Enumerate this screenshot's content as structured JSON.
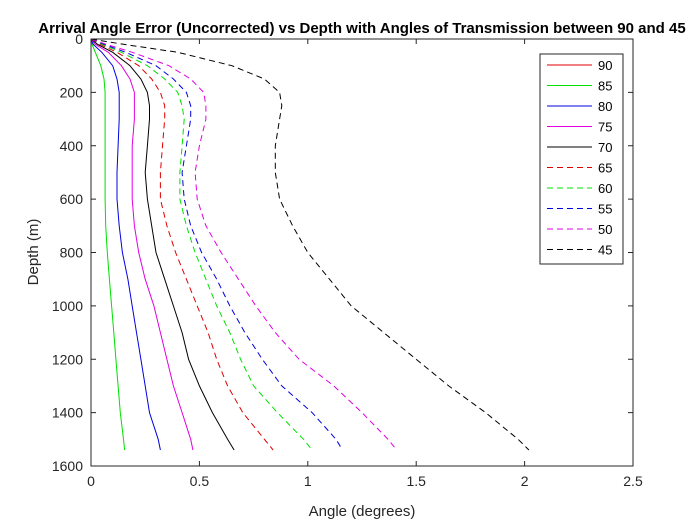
{
  "chart_data": {
    "type": "line",
    "title": "Arrival Angle Error (Uncorrected) vs Depth with Angles of Transmission between 90 and 45",
    "xlabel": "Angle (degrees)",
    "ylabel": "Depth (m)",
    "xlim": [
      0,
      2.5
    ],
    "ylim": [
      0,
      1600
    ],
    "y_reversed": true,
    "x_ticks": [
      "0",
      "0.5",
      "1",
      "1.5",
      "2",
      "2.5"
    ],
    "y_ticks": [
      "0",
      "200",
      "400",
      "600",
      "800",
      "1000",
      "1200",
      "1400",
      "1600"
    ],
    "grid": false,
    "legend_position": "top-right",
    "depths": [
      0,
      20,
      50,
      100,
      150,
      200,
      250,
      300,
      400,
      500,
      600,
      700,
      800,
      900,
      1000,
      1100,
      1200,
      1300,
      1400,
      1500,
      1540
    ],
    "series": [
      {
        "name": "90",
        "color": "#e00000",
        "dash": "solid",
        "values": [
          0,
          0,
          0,
          0,
          0,
          0,
          0,
          0,
          0,
          0,
          0,
          0,
          0,
          0,
          0,
          0,
          0,
          0,
          0,
          0,
          0
        ]
      },
      {
        "name": "85",
        "color": "#00e000",
        "dash": "solid",
        "values": [
          0,
          0.005,
          0.02,
          0.045,
          0.06,
          0.065,
          0.065,
          0.065,
          0.065,
          0.065,
          0.065,
          0.068,
          0.075,
          0.085,
          0.095,
          0.105,
          0.115,
          0.125,
          0.135,
          0.15,
          0.155
        ]
      },
      {
        "name": "80",
        "color": "#0000e0",
        "dash": "solid",
        "values": [
          0,
          0.01,
          0.05,
          0.1,
          0.12,
          0.13,
          0.13,
          0.13,
          0.125,
          0.12,
          0.12,
          0.13,
          0.145,
          0.17,
          0.19,
          0.21,
          0.23,
          0.25,
          0.27,
          0.31,
          0.32
        ]
      },
      {
        "name": "75",
        "color": "#e000e0",
        "dash": "solid",
        "values": [
          0,
          0.02,
          0.08,
          0.14,
          0.18,
          0.2,
          0.2,
          0.2,
          0.19,
          0.19,
          0.19,
          0.2,
          0.22,
          0.25,
          0.29,
          0.32,
          0.35,
          0.38,
          0.42,
          0.46,
          0.47
        ]
      },
      {
        "name": "70",
        "color": "#000000",
        "dash": "solid",
        "values": [
          0,
          0.03,
          0.1,
          0.18,
          0.23,
          0.26,
          0.27,
          0.27,
          0.26,
          0.25,
          0.26,
          0.28,
          0.3,
          0.34,
          0.38,
          0.42,
          0.45,
          0.5,
          0.56,
          0.63,
          0.66
        ]
      },
      {
        "name": "65",
        "color": "#e00000",
        "dash": "dashed",
        "values": [
          0,
          0.04,
          0.12,
          0.22,
          0.28,
          0.32,
          0.34,
          0.34,
          0.33,
          0.32,
          0.32,
          0.35,
          0.39,
          0.44,
          0.49,
          0.54,
          0.58,
          0.63,
          0.7,
          0.8,
          0.84
        ]
      },
      {
        "name": "60",
        "color": "#00e000",
        "dash": "dashed",
        "values": [
          0,
          0.05,
          0.14,
          0.26,
          0.34,
          0.4,
          0.42,
          0.43,
          0.42,
          0.41,
          0.41,
          0.44,
          0.48,
          0.53,
          0.58,
          0.64,
          0.69,
          0.75,
          0.86,
          0.98,
          1.02
        ]
      },
      {
        "name": "55",
        "color": "#0000e0",
        "dash": "dashed",
        "values": [
          0,
          0.06,
          0.16,
          0.3,
          0.38,
          0.44,
          0.46,
          0.46,
          0.44,
          0.42,
          0.43,
          0.46,
          0.51,
          0.58,
          0.64,
          0.71,
          0.79,
          0.88,
          1.02,
          1.13,
          1.16
        ]
      },
      {
        "name": "50",
        "color": "#e000e0",
        "dash": "dashed",
        "values": [
          0,
          0.07,
          0.19,
          0.36,
          0.46,
          0.52,
          0.53,
          0.53,
          0.5,
          0.48,
          0.49,
          0.53,
          0.6,
          0.68,
          0.76,
          0.85,
          0.96,
          1.12,
          1.25,
          1.37,
          1.41
        ]
      },
      {
        "name": "45",
        "color": "#000000",
        "dash": "dashed",
        "values": [
          0,
          0.15,
          0.4,
          0.65,
          0.8,
          0.87,
          0.88,
          0.87,
          0.85,
          0.85,
          0.87,
          0.93,
          1.0,
          1.1,
          1.2,
          1.35,
          1.5,
          1.65,
          1.82,
          1.97,
          2.02
        ]
      }
    ]
  }
}
